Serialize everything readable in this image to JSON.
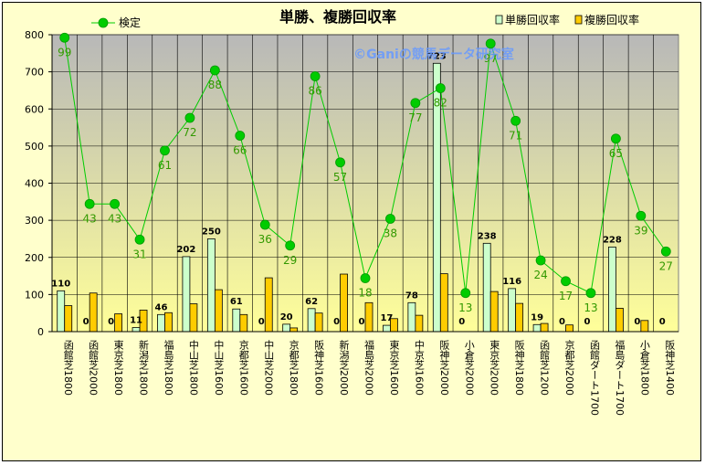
{
  "chart_data": {
    "type": "bar",
    "title": "単勝、複勝回収率",
    "watermark": "©Ganiの競馬データ研究室",
    "ylim": [
      0,
      800
    ],
    "y_ticks": [
      0,
      100,
      200,
      300,
      400,
      500,
      600,
      700,
      800
    ],
    "grid": true,
    "legend_position": "top",
    "categories": [
      "函館芝1800",
      "函館芝2000",
      "東京芝1800",
      "新潟芝1800",
      "福島芝1800",
      "中山芝1800",
      "中山芝1600",
      "京都芝1600",
      "中山芝2000",
      "京都芝1800",
      "阪神芝1600",
      "新潟芝2000",
      "福島芝2000",
      "東京芝1600",
      "中京芝1600",
      "阪神芝2000",
      "小倉芝2000",
      "東京芝2000",
      "阪神芝1800",
      "函館芝1200",
      "京都芝2000",
      "函館ダート1700",
      "福島ダート1700",
      "小倉芝1800",
      "阪神芝1400"
    ],
    "series": [
      {
        "name": "単勝回収率",
        "kind": "bar",
        "color": "#ccffcc",
        "values": [
          110,
          0,
          0,
          11,
          46,
          202,
          250,
          61,
          0,
          20,
          62,
          0,
          0,
          17,
          78,
          723,
          0,
          238,
          116,
          19,
          0,
          0,
          228,
          0,
          0
        ],
        "labels": [
          "110",
          "0",
          "0",
          "11",
          "46",
          "202",
          "250",
          "61",
          "0",
          "20",
          "62",
          "0",
          "0",
          "17",
          "78",
          "723",
          "0",
          "238",
          "116",
          "19",
          "0",
          "0",
          "228",
          "0",
          "0"
        ]
      },
      {
        "name": "複勝回収率",
        "kind": "bar",
        "color": "#ffcc00",
        "values": [
          70,
          104,
          48,
          58,
          51,
          75,
          113,
          46,
          145,
          10,
          50,
          155,
          78,
          35,
          44,
          156,
          0,
          108,
          76,
          22,
          18,
          0,
          63,
          30,
          0
        ]
      },
      {
        "name": "検定",
        "kind": "line",
        "color": "#00cc00",
        "values": [
          99,
          43,
          43,
          31,
          61,
          72,
          88,
          66,
          36,
          29,
          86,
          57,
          18,
          38,
          77,
          82,
          13,
          97,
          71,
          24,
          17,
          13,
          65,
          39,
          27
        ],
        "labels": [
          "99",
          "43",
          "43",
          "31",
          "61",
          "72",
          "88",
          "66",
          "36",
          "29",
          "86",
          "57",
          "18",
          "38",
          "77",
          "82",
          "13",
          "97",
          "71",
          "24",
          "17",
          "13",
          "65",
          "39",
          "27"
        ]
      }
    ],
    "colors": {
      "plot_background_top": "#b8b8b8",
      "plot_background_bottom": "#ffff99",
      "line_label": "#339900",
      "frame_background": "#ffffcc",
      "watermark": "#6699ff"
    }
  }
}
